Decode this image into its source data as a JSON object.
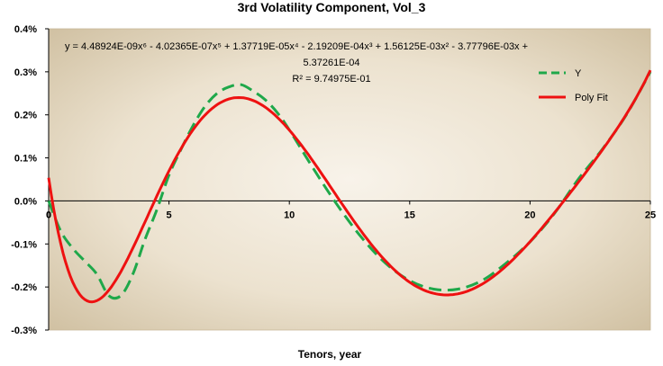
{
  "chart_data": {
    "type": "line",
    "title": "3rd Volatility Component, Vol_3",
    "xlabel": "Tenors, year",
    "ylabel": "",
    "xlim": [
      0,
      25
    ],
    "ylim": [
      -0.3,
      0.4
    ],
    "x_ticks": [
      0,
      5,
      10,
      15,
      20,
      25
    ],
    "x_tick_labels": [
      "0",
      "5",
      "10",
      "15",
      "20",
      "25"
    ],
    "y_ticks": [
      -0.3,
      -0.2,
      -0.1,
      0.0,
      0.1,
      0.2,
      0.3,
      0.4
    ],
    "y_tick_labels": [
      "-0.3%",
      "-0.2%",
      "-0.1%",
      "0.0%",
      "0.1%",
      "0.2%",
      "0.3%",
      "0.4%"
    ],
    "y_unit": "%",
    "grid": false,
    "legend_position": "top-right",
    "equation_lines": [
      "y = 4.48924E-09x⁶ - 4.02365E-07x⁵ + 1.37719E-05x⁴ - 2.19209E-04x³ + 1.56125E-03x² - 3.77796E-03x  +",
      "5.37261E-04",
      "R² = 9.74975E-01"
    ],
    "series": [
      {
        "name": "Y",
        "style": "dashed",
        "color": "#1fa84a",
        "x": [
          0,
          0.5,
          1,
          1.5,
          2,
          2.5,
          3,
          3.5,
          4,
          4.5,
          5,
          5.5,
          6,
          6.5,
          7,
          7.5,
          8,
          8.5,
          9,
          9.5,
          10,
          11,
          12,
          13,
          14,
          15,
          16,
          17,
          18,
          19,
          20,
          21,
          22,
          23,
          24,
          25
        ],
        "values": [
          0.0,
          -0.07,
          -0.11,
          -0.14,
          -0.17,
          -0.22,
          -0.22,
          -0.17,
          -0.09,
          -0.02,
          0.06,
          0.12,
          0.175,
          0.22,
          0.25,
          0.265,
          0.27,
          0.255,
          0.235,
          0.205,
          0.165,
          0.075,
          -0.01,
          -0.085,
          -0.145,
          -0.185,
          -0.205,
          -0.205,
          -0.185,
          -0.145,
          -0.095,
          -0.03,
          0.05,
          0.12,
          0.2,
          0.3
        ]
      },
      {
        "name": "Poly Fit",
        "style": "solid",
        "color": "#ee1111",
        "coefficients": [
          0.000537261,
          -0.00377796,
          0.00156125,
          -0.000219209,
          1.37719e-05,
          -4.02365e-07,
          4.48924e-09
        ],
        "coefficients_unit": "fraction"
      }
    ]
  },
  "colors": {
    "plot_center": "#f8f3ea",
    "plot_edge": "#cfbfa0",
    "dashed_series": "#1fa84a",
    "fit_series": "#ee1111"
  }
}
